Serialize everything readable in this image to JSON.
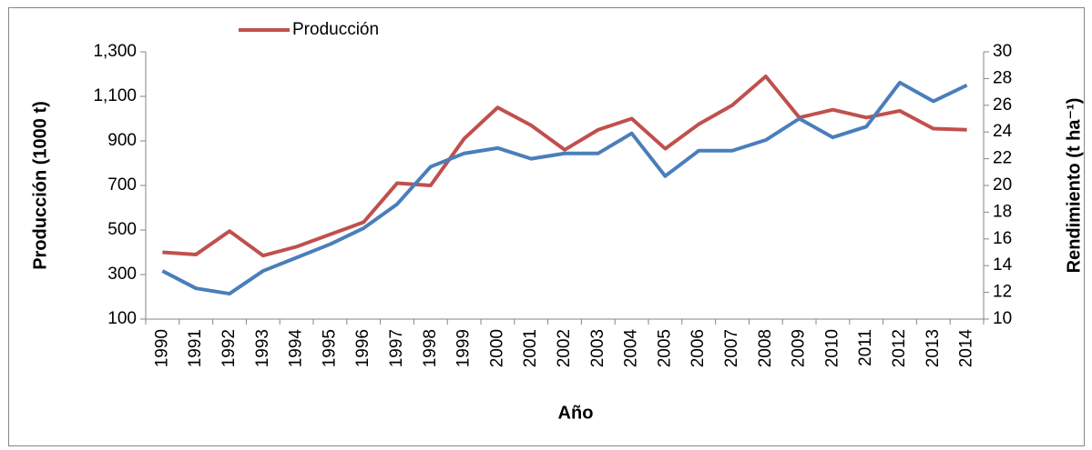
{
  "chart_data": {
    "type": "line",
    "xlabel": "Año",
    "ylabel": "Producción (1000 t)",
    "y2label": "Rendimiento (t ha⁻¹)",
    "categories": [
      "1990",
      "1991",
      "1992",
      "1993",
      "1994",
      "1995",
      "1996",
      "1997",
      "1998",
      "1999",
      "2000",
      "2001",
      "2002",
      "2003",
      "2004",
      "2005",
      "2006",
      "2007",
      "2008",
      "2009",
      "2010",
      "2011",
      "2012",
      "2013",
      "2014"
    ],
    "series": [
      {
        "name": "Producción",
        "color": "#c0504d",
        "values": [
          400,
          390,
          495,
          385,
          425,
          480,
          535,
          710,
          700,
          910,
          1050,
          970,
          860,
          950,
          1000,
          865,
          975,
          1060,
          1190,
          1005,
          1040,
          1005,
          1035,
          955,
          950
        ]
      },
      {
        "color": "#4a7ebb",
        "axis": "y2",
        "values": [
          13.6,
          12.3,
          11.9,
          13.6,
          14.6,
          15.6,
          16.8,
          18.6,
          21.4,
          22.4,
          22.8,
          22.0,
          22.4,
          22.4,
          23.9,
          20.7,
          22.6,
          22.6,
          23.4,
          25.0,
          23.6,
          24.4,
          27.7,
          26.3,
          27.5
        ]
      }
    ],
    "ylim": [
      100,
      1300
    ],
    "yticks": [
      100,
      300,
      500,
      700,
      900,
      {
        "value": 1100,
        "label": "1,100"
      },
      {
        "value": 1300,
        "label": "1,300"
      }
    ],
    "y2lim": [
      10,
      30
    ],
    "y2ticks": [
      10,
      12,
      14,
      16,
      18,
      20,
      22,
      24,
      26,
      28,
      30
    ],
    "legend": "top-left"
  }
}
